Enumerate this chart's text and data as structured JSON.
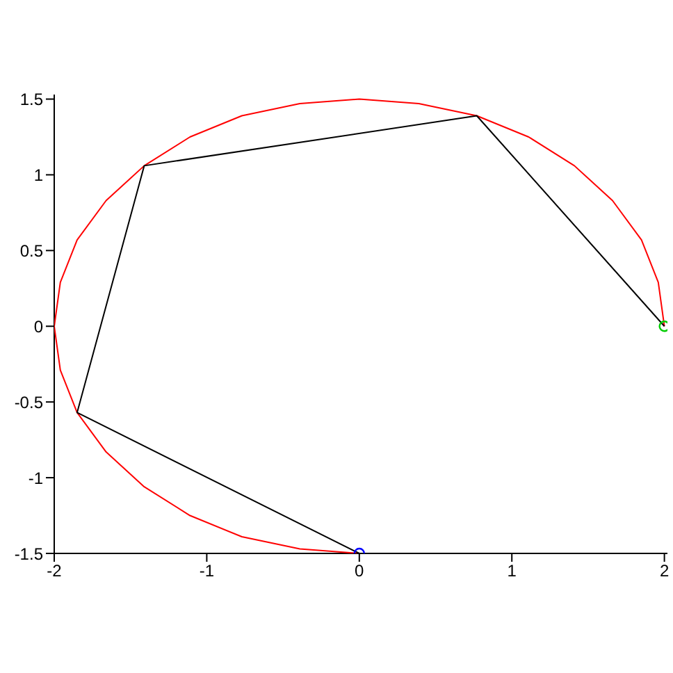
{
  "chart_data": {
    "type": "line",
    "xlim": [
      -2,
      2.02
    ],
    "ylim": [
      -1.5,
      1.53
    ],
    "xticks": [
      -2,
      -1,
      0,
      1,
      2
    ],
    "yticks": [
      -1.5,
      -1,
      -0.5,
      0,
      0.5,
      1,
      1.5
    ],
    "grid": false,
    "legend": false,
    "marker": "none",
    "line_style": "solid",
    "series": [
      {
        "type": "line",
        "color": "#ff0000",
        "x": [
          2,
          1.96,
          1.85,
          1.66,
          1.41,
          1.11,
          0.77,
          0.39,
          0,
          -0.39,
          -0.77,
          -1.11,
          -1.41,
          -1.66,
          -1.85,
          -1.96,
          -2,
          -1.96,
          -1.85,
          -1.66,
          -1.41,
          -1.11,
          -0.77,
          -0.39,
          0
        ],
        "values": [
          0,
          0.29,
          0.57,
          0.83,
          1.06,
          1.25,
          1.39,
          1.47,
          1.5,
          1.47,
          1.39,
          1.25,
          1.06,
          0.83,
          0.57,
          0.29,
          0,
          -0.29,
          -0.57,
          -0.83,
          -1.06,
          -1.25,
          -1.39,
          -1.47,
          -1.5
        ]
      },
      {
        "type": "line",
        "color": "#000000",
        "x": [
          2,
          0.77,
          -1.41,
          -1.85,
          0
        ],
        "values": [
          0,
          1.39,
          1.06,
          -0.57,
          -1.5
        ]
      },
      {
        "type": "scatter",
        "color": "#00cc00",
        "marker": "circle",
        "x": [
          2
        ],
        "values": [
          0
        ]
      },
      {
        "type": "scatter",
        "color": "#0000ff",
        "marker": "circle",
        "x": [
          0
        ],
        "values": [
          -1.5
        ]
      }
    ]
  }
}
